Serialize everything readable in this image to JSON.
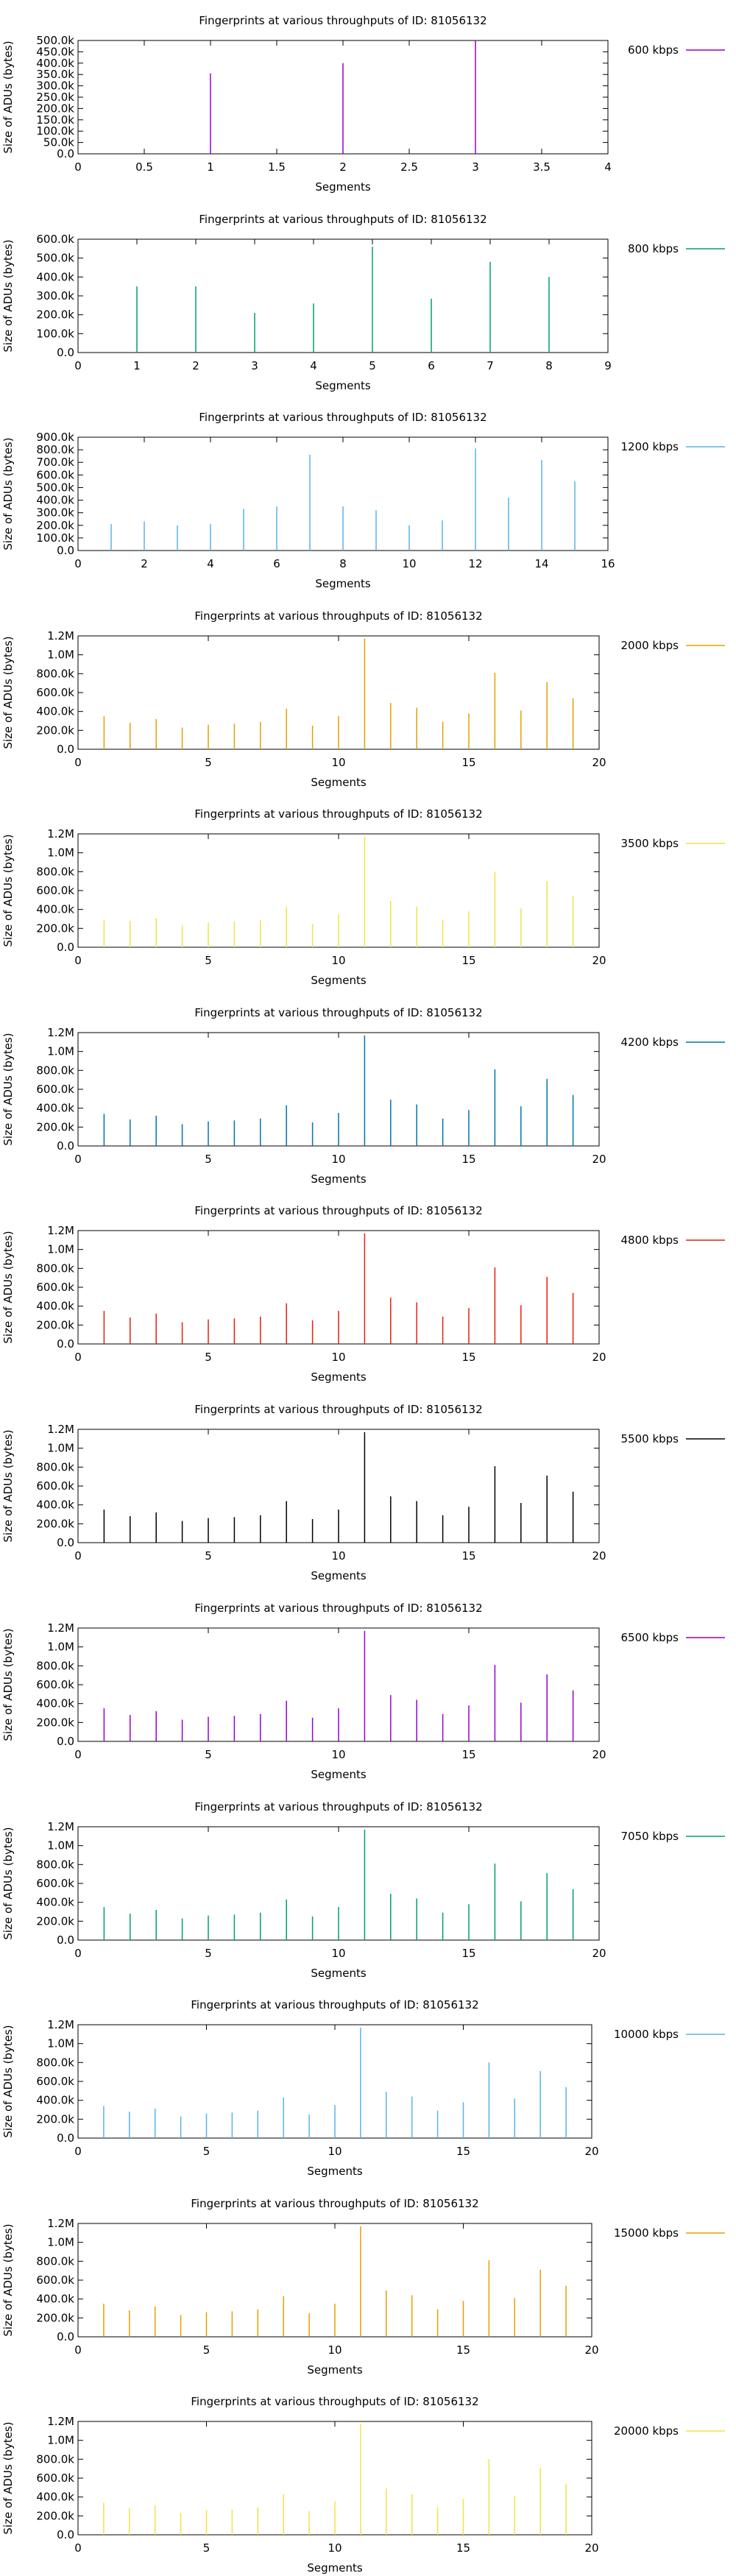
{
  "common": {
    "title": "Fingerprints at various throughputs of ID: 81056132",
    "xlabel": "Segments",
    "ylabel": "Size of ADUs (bytes)"
  },
  "chart_data": [
    {
      "type": "bar",
      "series_name": "600 kbps",
      "color": "#9400d3",
      "x": [
        1,
        2,
        3
      ],
      "values": [
        355000,
        400000,
        500000
      ],
      "xlim": [
        0,
        4
      ],
      "xticks": [
        0,
        0.5,
        1,
        1.5,
        2,
        2.5,
        3,
        3.5,
        4
      ],
      "xtick_labels": [
        "0",
        "0.5",
        "1",
        "1.5",
        "2",
        "2.5",
        "3",
        "3.5",
        "4"
      ],
      "ylim": [
        0,
        500000
      ],
      "yticks": [
        0,
        50000,
        100000,
        150000,
        200000,
        250000,
        300000,
        350000,
        400000,
        450000,
        500000
      ],
      "ytick_labels": [
        "0.0",
        "50.0k",
        "100.0k",
        "150.0k",
        "200.0k",
        "250.0k",
        "300.0k",
        "350.0k",
        "400.0k",
        "450.0k",
        "500.0k"
      ]
    },
    {
      "type": "bar",
      "series_name": "800 kbps",
      "color": "#009e73",
      "x": [
        1,
        2,
        3,
        4,
        5,
        6,
        7,
        8
      ],
      "values": [
        350000,
        350000,
        210000,
        260000,
        560000,
        285000,
        480000,
        400000
      ],
      "xlim": [
        0,
        9
      ],
      "xticks": [
        0,
        1,
        2,
        3,
        4,
        5,
        6,
        7,
        8,
        9
      ],
      "xtick_labels": [
        "0",
        "1",
        "2",
        "3",
        "4",
        "5",
        "6",
        "7",
        "8",
        "9"
      ],
      "ylim": [
        0,
        600000
      ],
      "yticks": [
        0,
        100000,
        200000,
        300000,
        400000,
        500000,
        600000
      ],
      "ytick_labels": [
        "0.0",
        "100.0k",
        "200.0k",
        "300.0k",
        "400.0k",
        "500.0k",
        "600.0k"
      ]
    },
    {
      "type": "bar",
      "series_name": "1200 kbps",
      "color": "#56b4e9",
      "x": [
        1,
        2,
        3,
        4,
        5,
        6,
        7,
        8,
        9,
        10,
        11,
        12,
        13,
        14,
        15
      ],
      "values": [
        210000,
        230000,
        200000,
        210000,
        330000,
        350000,
        760000,
        350000,
        320000,
        200000,
        240000,
        810000,
        420000,
        720000,
        550000
      ],
      "xlim": [
        0,
        16
      ],
      "xticks": [
        0,
        2,
        4,
        6,
        8,
        10,
        12,
        14,
        16
      ],
      "xtick_labels": [
        "0",
        "2",
        "4",
        "6",
        "8",
        "10",
        "12",
        "14",
        "16"
      ],
      "ylim": [
        0,
        900000
      ],
      "yticks": [
        0,
        100000,
        200000,
        300000,
        400000,
        500000,
        600000,
        700000,
        800000,
        900000
      ],
      "ytick_labels": [
        "0.0",
        "100.0k",
        "200.0k",
        "300.0k",
        "400.0k",
        "500.0k",
        "600.0k",
        "700.0k",
        "800.0k",
        "900.0k"
      ]
    },
    {
      "type": "bar",
      "series_name": "2000 kbps",
      "color": "#e69f00",
      "x": [
        1,
        2,
        3,
        4,
        5,
        6,
        7,
        8,
        9,
        10,
        11,
        12,
        13,
        14,
        15,
        16,
        17,
        18,
        19
      ],
      "values": [
        350000,
        280000,
        320000,
        230000,
        260000,
        270000,
        290000,
        430000,
        250000,
        350000,
        1170000,
        490000,
        440000,
        290000,
        380000,
        810000,
        410000,
        710000,
        540000
      ],
      "xlim": [
        0,
        20
      ],
      "xticks": [
        0,
        5,
        10,
        15,
        20
      ],
      "xtick_labels": [
        "0",
        "5",
        "10",
        "15",
        "20"
      ],
      "ylim": [
        0,
        1200000
      ],
      "yticks": [
        0,
        200000,
        400000,
        600000,
        800000,
        1000000,
        1200000
      ],
      "ytick_labels": [
        "0.0",
        "200.0k",
        "400.0k",
        "600.0k",
        "800.0k",
        "1.0M",
        "1.2M"
      ]
    },
    {
      "type": "bar",
      "series_name": "3500 kbps",
      "color": "#f0e442",
      "x": [
        1,
        2,
        3,
        4,
        5,
        6,
        7,
        8,
        9,
        10,
        11,
        12,
        13,
        14,
        15,
        16,
        17,
        18,
        19
      ],
      "values": [
        290000,
        280000,
        310000,
        230000,
        260000,
        270000,
        290000,
        430000,
        250000,
        350000,
        1170000,
        490000,
        430000,
        290000,
        380000,
        800000,
        410000,
        700000,
        540000
      ],
      "xlim": [
        0,
        20
      ],
      "xticks": [
        0,
        5,
        10,
        15,
        20
      ],
      "xtick_labels": [
        "0",
        "5",
        "10",
        "15",
        "20"
      ],
      "ylim": [
        0,
        1200000
      ],
      "yticks": [
        0,
        200000,
        400000,
        600000,
        800000,
        1000000,
        1200000
      ],
      "ytick_labels": [
        "0.0",
        "200.0k",
        "400.0k",
        "600.0k",
        "800.0k",
        "1.0M",
        "1.2M"
      ]
    },
    {
      "type": "bar",
      "series_name": "4200 kbps",
      "color": "#0072b2",
      "x": [
        1,
        2,
        3,
        4,
        5,
        6,
        7,
        8,
        9,
        10,
        11,
        12,
        13,
        14,
        15,
        16,
        17,
        18,
        19
      ],
      "values": [
        340000,
        280000,
        320000,
        230000,
        260000,
        270000,
        290000,
        430000,
        250000,
        350000,
        1170000,
        490000,
        440000,
        290000,
        380000,
        810000,
        420000,
        710000,
        540000
      ],
      "xlim": [
        0,
        20
      ],
      "xticks": [
        0,
        5,
        10,
        15,
        20
      ],
      "xtick_labels": [
        "0",
        "5",
        "10",
        "15",
        "20"
      ],
      "ylim": [
        0,
        1200000
      ],
      "yticks": [
        0,
        200000,
        400000,
        600000,
        800000,
        1000000,
        1200000
      ],
      "ytick_labels": [
        "0.0",
        "200.0k",
        "400.0k",
        "600.0k",
        "800.0k",
        "1.0M",
        "1.2M"
      ]
    },
    {
      "type": "bar",
      "series_name": "4800 kbps",
      "color": "#e51e10",
      "x": [
        1,
        2,
        3,
        4,
        5,
        6,
        7,
        8,
        9,
        10,
        11,
        12,
        13,
        14,
        15,
        16,
        17,
        18,
        19
      ],
      "values": [
        350000,
        280000,
        320000,
        230000,
        260000,
        270000,
        290000,
        430000,
        250000,
        350000,
        1170000,
        490000,
        440000,
        290000,
        380000,
        810000,
        410000,
        710000,
        540000
      ],
      "xlim": [
        0,
        20
      ],
      "xticks": [
        0,
        5,
        10,
        15,
        20
      ],
      "xtick_labels": [
        "0",
        "5",
        "10",
        "15",
        "20"
      ],
      "ylim": [
        0,
        1200000
      ],
      "yticks": [
        0,
        200000,
        400000,
        600000,
        800000,
        1000000,
        1200000
      ],
      "ytick_labels": [
        "0.0",
        "200.0k",
        "400.0k",
        "600.0k",
        "800.0k",
        "1.0M",
        "1.2M"
      ]
    },
    {
      "type": "bar",
      "series_name": "5500 kbps",
      "color": "#000000",
      "x": [
        1,
        2,
        3,
        4,
        5,
        6,
        7,
        8,
        9,
        10,
        11,
        12,
        13,
        14,
        15,
        16,
        17,
        18,
        19
      ],
      "values": [
        350000,
        280000,
        320000,
        230000,
        260000,
        270000,
        290000,
        440000,
        250000,
        350000,
        1170000,
        490000,
        440000,
        290000,
        380000,
        810000,
        420000,
        710000,
        540000
      ],
      "xlim": [
        0,
        20
      ],
      "xticks": [
        0,
        5,
        10,
        15,
        20
      ],
      "xtick_labels": [
        "0",
        "5",
        "10",
        "15",
        "20"
      ],
      "ylim": [
        0,
        1200000
      ],
      "yticks": [
        0,
        200000,
        400000,
        600000,
        800000,
        1000000,
        1200000
      ],
      "ytick_labels": [
        "0.0",
        "200.0k",
        "400.0k",
        "600.0k",
        "800.0k",
        "1.0M",
        "1.2M"
      ]
    },
    {
      "type": "bar",
      "series_name": "6500 kbps",
      "color": "#9400d3",
      "x": [
        1,
        2,
        3,
        4,
        5,
        6,
        7,
        8,
        9,
        10,
        11,
        12,
        13,
        14,
        15,
        16,
        17,
        18,
        19
      ],
      "values": [
        350000,
        280000,
        320000,
        230000,
        260000,
        270000,
        290000,
        430000,
        250000,
        350000,
        1170000,
        490000,
        440000,
        290000,
        380000,
        810000,
        410000,
        710000,
        540000
      ],
      "xlim": [
        0,
        20
      ],
      "xticks": [
        0,
        5,
        10,
        15,
        20
      ],
      "xtick_labels": [
        "0",
        "5",
        "10",
        "15",
        "20"
      ],
      "ylim": [
        0,
        1200000
      ],
      "yticks": [
        0,
        200000,
        400000,
        600000,
        800000,
        1000000,
        1200000
      ],
      "ytick_labels": [
        "0.0",
        "200.0k",
        "400.0k",
        "600.0k",
        "800.0k",
        "1.0M",
        "1.2M"
      ]
    },
    {
      "type": "bar",
      "series_name": "7050 kbps",
      "color": "#009e73",
      "x": [
        1,
        2,
        3,
        4,
        5,
        6,
        7,
        8,
        9,
        10,
        11,
        12,
        13,
        14,
        15,
        16,
        17,
        18,
        19
      ],
      "values": [
        350000,
        280000,
        320000,
        230000,
        260000,
        270000,
        290000,
        430000,
        250000,
        350000,
        1170000,
        490000,
        440000,
        290000,
        380000,
        810000,
        410000,
        710000,
        540000
      ],
      "xlim": [
        0,
        20
      ],
      "xticks": [
        0,
        5,
        10,
        15,
        20
      ],
      "xtick_labels": [
        "0",
        "5",
        "10",
        "15",
        "20"
      ],
      "ylim": [
        0,
        1200000
      ],
      "yticks": [
        0,
        200000,
        400000,
        600000,
        800000,
        1000000,
        1200000
      ],
      "ytick_labels": [
        "0.0",
        "200.0k",
        "400.0k",
        "600.0k",
        "800.0k",
        "1.0M",
        "1.2M"
      ]
    },
    {
      "type": "bar",
      "series_name": "10000 kbps",
      "color": "#56b4e9",
      "x": [
        1,
        2,
        3,
        4,
        5,
        6,
        7,
        8,
        9,
        10,
        11,
        12,
        13,
        14,
        15,
        16,
        17,
        18,
        19
      ],
      "values": [
        340000,
        280000,
        310000,
        230000,
        260000,
        270000,
        290000,
        430000,
        250000,
        350000,
        1170000,
        490000,
        440000,
        290000,
        380000,
        800000,
        420000,
        710000,
        540000
      ],
      "xlim": [
        0,
        20
      ],
      "xticks": [
        0,
        5,
        10,
        15,
        20
      ],
      "xtick_labels": [
        "0",
        "5",
        "10",
        "15",
        "20"
      ],
      "ylim": [
        0,
        1200000
      ],
      "yticks": [
        0,
        200000,
        400000,
        600000,
        800000,
        1000000,
        1200000
      ],
      "ytick_labels": [
        "0.0",
        "200.0k",
        "400.0k",
        "600.0k",
        "800.0k",
        "1.0M",
        "1.2M"
      ]
    },
    {
      "type": "bar",
      "series_name": "15000 kbps",
      "color": "#e69f00",
      "x": [
        1,
        2,
        3,
        4,
        5,
        6,
        7,
        8,
        9,
        10,
        11,
        12,
        13,
        14,
        15,
        16,
        17,
        18,
        19
      ],
      "values": [
        350000,
        280000,
        320000,
        230000,
        260000,
        270000,
        290000,
        430000,
        250000,
        350000,
        1170000,
        490000,
        440000,
        290000,
        380000,
        810000,
        410000,
        710000,
        540000
      ],
      "xlim": [
        0,
        20
      ],
      "xticks": [
        0,
        5,
        10,
        15,
        20
      ],
      "xtick_labels": [
        "0",
        "5",
        "10",
        "15",
        "20"
      ],
      "ylim": [
        0,
        1200000
      ],
      "yticks": [
        0,
        200000,
        400000,
        600000,
        800000,
        1000000,
        1200000
      ],
      "ytick_labels": [
        "0.0",
        "200.0k",
        "400.0k",
        "600.0k",
        "800.0k",
        "1.0M",
        "1.2M"
      ]
    },
    {
      "type": "bar",
      "series_name": "20000 kbps",
      "color": "#f0e442",
      "x": [
        1,
        2,
        3,
        4,
        5,
        6,
        7,
        8,
        9,
        10,
        11,
        12,
        13,
        14,
        15,
        16,
        17,
        18,
        19
      ],
      "values": [
        340000,
        280000,
        310000,
        230000,
        260000,
        270000,
        290000,
        430000,
        250000,
        350000,
        1170000,
        490000,
        430000,
        290000,
        380000,
        800000,
        410000,
        710000,
        540000
      ],
      "xlim": [
        0,
        20
      ],
      "xticks": [
        0,
        5,
        10,
        15,
        20
      ],
      "xtick_labels": [
        "0",
        "5",
        "10",
        "15",
        "20"
      ],
      "ylim": [
        0,
        1200000
      ],
      "yticks": [
        0,
        200000,
        400000,
        600000,
        800000,
        1000000,
        1200000
      ],
      "ytick_labels": [
        "0.0",
        "200.0k",
        "400.0k",
        "600.0k",
        "800.0k",
        "1.0M",
        "1.2M"
      ]
    }
  ]
}
